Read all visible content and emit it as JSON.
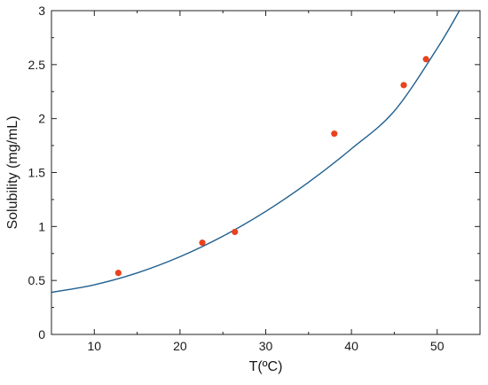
{
  "chart_data": {
    "type": "scatter",
    "xlabel": "T(ºC)",
    "ylabel": "Solubility (mg/mL)",
    "xlim": [
      5,
      55
    ],
    "ylim": [
      0,
      3
    ],
    "x_major_ticks": [
      10,
      20,
      30,
      40,
      50
    ],
    "y_major_ticks": [
      0,
      0.5,
      1,
      1.5,
      2,
      2.5,
      3
    ],
    "y_tick_labels": [
      "0",
      "0.5",
      "1",
      "1.5",
      "2",
      "2.5",
      "3"
    ],
    "x_minor_step": 5,
    "y_minor_step": 0.25,
    "grid": false,
    "legend": "none",
    "series": [
      {
        "kind": "scatter",
        "color": "#e8431f",
        "x": [
          12.8,
          22.6,
          26.4,
          38.0,
          46.1,
          48.7
        ],
        "y": [
          0.57,
          0.85,
          0.95,
          1.86,
          2.31,
          2.55
        ]
      },
      {
        "kind": "line",
        "color": "#1f5f8f",
        "x": [
          5,
          10,
          15,
          20,
          25,
          30,
          35,
          40,
          45,
          50,
          52.6
        ],
        "y": [
          0.39,
          0.46,
          0.57,
          0.72,
          0.91,
          1.14,
          1.41,
          1.72,
          2.07,
          2.65,
          3.0
        ]
      }
    ]
  }
}
